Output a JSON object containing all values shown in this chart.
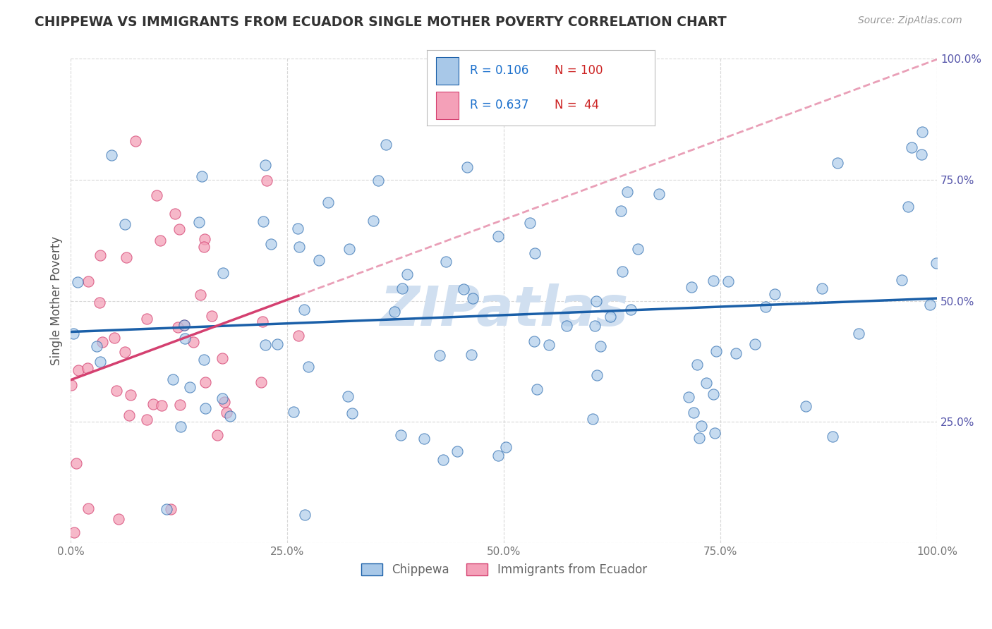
{
  "title": "CHIPPEWA VS IMMIGRANTS FROM ECUADOR SINGLE MOTHER POVERTY CORRELATION CHART",
  "source": "Source: ZipAtlas.com",
  "ylabel": "Single Mother Poverty",
  "legend_label1": "Chippewa",
  "legend_label2": "Immigrants from Ecuador",
  "R1": 0.106,
  "N1": 100,
  "R2": 0.637,
  "N2": 44,
  "color1": "#a8c8e8",
  "color2": "#f4a0b8",
  "trendline1_color": "#1a5fa8",
  "trendline2_color": "#d44070",
  "watermark": "ZIPatlas",
  "watermark_color": "#d0dff0",
  "background_color": "#ffffff",
  "grid_color": "#c8c8c8",
  "xlim": [
    0.0,
    1.0
  ],
  "ylim": [
    0.0,
    1.0
  ],
  "xticks": [
    0.0,
    0.25,
    0.5,
    0.75,
    1.0
  ],
  "yticks": [
    0.0,
    0.25,
    0.5,
    0.75,
    1.0
  ],
  "xtick_labels": [
    "0.0%",
    "25.0%",
    "50.0%",
    "75.0%",
    "100.0%"
  ],
  "ytick_labels": [
    "",
    "25.0%",
    "50.0%",
    "75.0%",
    "100.0%"
  ],
  "legend_R1_color": "#1a6fcc",
  "legend_N1_color": "#cc2222",
  "legend_R2_color": "#1a6fcc",
  "legend_N2_color": "#cc2222"
}
